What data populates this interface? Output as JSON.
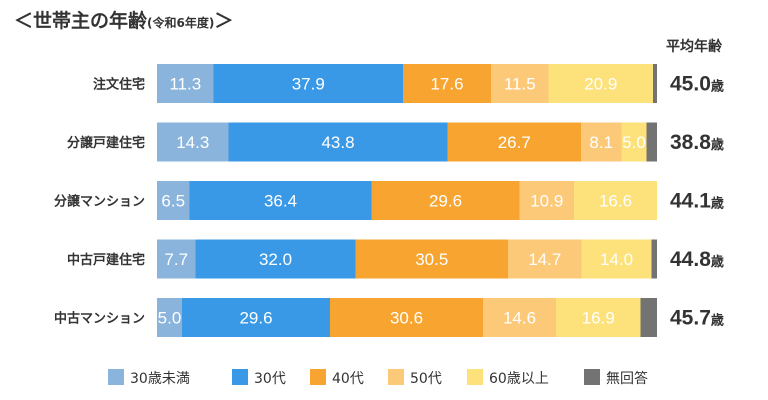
{
  "title": "＜世帯主の年齢",
  "subtitle": "(令和6年度)",
  "title_end": "＞",
  "avg_header": "平均年齢",
  "avg_unit": "歳",
  "chart_data": {
    "type": "bar",
    "orientation": "horizontal",
    "stacked": true,
    "percent_scale": [
      0,
      100
    ],
    "categories": [
      "注文住宅",
      "分譲戸建住宅",
      "分譲マンション",
      "中古戸建住宅",
      "中古マンション"
    ],
    "series": [
      {
        "name": "30歳未満",
        "color": "#8ab4dc",
        "values": [
          11.3,
          14.3,
          6.5,
          7.7,
          5.0
        ]
      },
      {
        "name": "30代",
        "color": "#3a99e6",
        "values": [
          37.9,
          43.8,
          36.4,
          32.0,
          29.6
        ]
      },
      {
        "name": "40代",
        "color": "#f7a530",
        "values": [
          17.6,
          26.7,
          29.6,
          30.5,
          30.6
        ]
      },
      {
        "name": "50代",
        "color": "#fcc978",
        "values": [
          11.5,
          8.1,
          10.9,
          14.7,
          14.6
        ]
      },
      {
        "name": "60歳以上",
        "color": "#fde17a",
        "values": [
          20.9,
          5.0,
          16.6,
          14.0,
          16.9
        ]
      },
      {
        "name": "無回答",
        "color": "#737373",
        "values": [
          0.8,
          2.1,
          0.0,
          1.1,
          3.3
        ]
      }
    ],
    "value_labels": [
      [
        "11.3",
        "37.9",
        "17.6",
        "11.5",
        "20.9",
        ""
      ],
      [
        "14.3",
        "43.8",
        "26.7",
        "8.1",
        "5.0",
        ""
      ],
      [
        "6.5",
        "36.4",
        "29.6",
        "10.9",
        "16.6",
        ""
      ],
      [
        "7.7",
        "32.0",
        "30.5",
        "14.7",
        "14.0",
        ""
      ],
      [
        "5.0",
        "29.6",
        "30.6",
        "14.6",
        "16.9",
        ""
      ]
    ],
    "average_age": [
      "45.0",
      "38.8",
      "44.1",
      "44.8",
      "45.7"
    ],
    "legend_position": "bottom",
    "grid": false
  }
}
